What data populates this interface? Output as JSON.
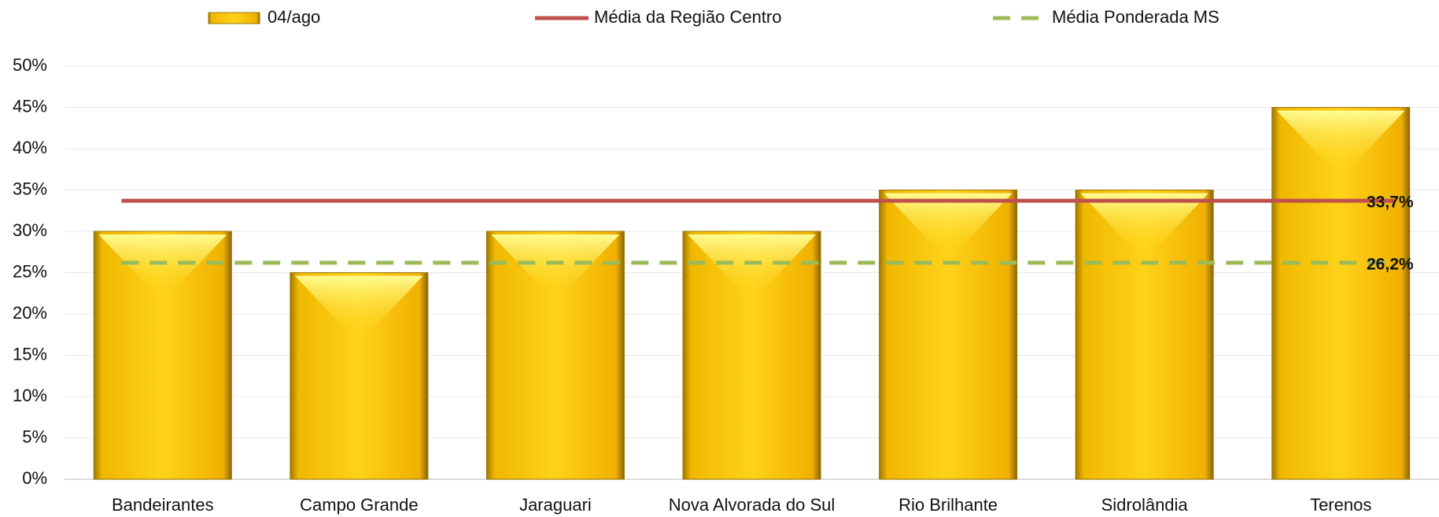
{
  "chart_data": {
    "type": "bar",
    "categories": [
      "Bandeirantes",
      "Campo Grande",
      "Jaraguari",
      "Nova Alvorada do Sul",
      "Rio Brilhante",
      "Sidrolândia",
      "Terenos"
    ],
    "series": [
      {
        "name": "04/ago",
        "type": "bar",
        "color": "#f5c400",
        "values": [
          30,
          25,
          30,
          30,
          35,
          35,
          45
        ]
      },
      {
        "name": "Média da Região Centro",
        "type": "line",
        "color": "#c0504d",
        "values": [
          33.7,
          33.7,
          33.7,
          33.7,
          33.7,
          33.7,
          33.7
        ],
        "value_labels": [
          null,
          null,
          null,
          null,
          null,
          null,
          "33,7%"
        ]
      },
      {
        "name": "Média Ponderada MS",
        "type": "line",
        "dashed": true,
        "color": "#9bbb59",
        "values": [
          26.2,
          26.2,
          26.2,
          26.2,
          26.2,
          26.2,
          26.2
        ],
        "value_labels": [
          null,
          null,
          null,
          null,
          null,
          null,
          "26,2%"
        ]
      }
    ],
    "ylim": [
      0,
      50
    ],
    "yticks": [
      {
        "value": 0,
        "label": "0%"
      },
      {
        "value": 5,
        "label": "5%"
      },
      {
        "value": 10,
        "label": "10%"
      },
      {
        "value": 15,
        "label": "15%"
      },
      {
        "value": 20,
        "label": "20%"
      },
      {
        "value": 25,
        "label": "25%"
      },
      {
        "value": 30,
        "label": "30%"
      },
      {
        "value": 35,
        "label": "35%"
      },
      {
        "value": 40,
        "label": "40%"
      },
      {
        "value": 45,
        "label": "45%"
      },
      {
        "value": 50,
        "label": "50%"
      }
    ],
    "grid": true
  }
}
